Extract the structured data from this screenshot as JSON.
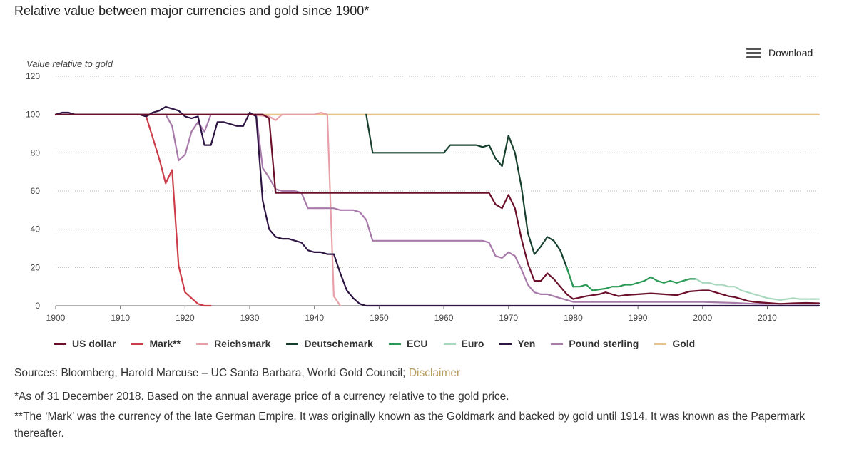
{
  "title": "Relative value between major currencies and gold since 1900*",
  "download_label": "Download",
  "sources": {
    "text": "Sources: Bloomberg, Harold Marcuse – UC Santa Barbara, World Gold Council;",
    "link": "Disclaimer"
  },
  "notes": {
    "n1": "*As of 31 December 2018. Based on the annual average price of a currency relative to the gold price.",
    "n2": "**The ‘Mark’ was the currency of the late German Empire. It was originally known as the Goldmark and backed by gold until 1914. It was known as the Papermark thereafter."
  },
  "colors": {
    "grid": "#bbbbbb",
    "axis": "#666666"
  },
  "chart_data": {
    "type": "line",
    "ylabel": "Value relative to gold",
    "xlim": [
      1900,
      2018
    ],
    "ylim": [
      0,
      120
    ],
    "x_ticks": [
      1900,
      1910,
      1920,
      1930,
      1940,
      1950,
      1960,
      1970,
      1980,
      1990,
      2000,
      2010
    ],
    "y_ticks": [
      0,
      20,
      40,
      60,
      80,
      100,
      120
    ],
    "grid": true,
    "legend_position": "bottom",
    "series": [
      {
        "name": "Gold",
        "color": "#e8c48c",
        "points": [
          [
            1900,
            100
          ],
          [
            2018,
            100
          ]
        ]
      },
      {
        "name": "Reichsmark",
        "color": "#e8a0a8",
        "points": [
          [
            1924,
            100
          ],
          [
            1930,
            100
          ],
          [
            1933,
            99
          ],
          [
            1934,
            97
          ],
          [
            1935,
            100
          ],
          [
            1938,
            100
          ],
          [
            1939,
            100
          ],
          [
            1940,
            100
          ],
          [
            1941,
            101
          ],
          [
            1942,
            100
          ],
          [
            1943,
            5
          ],
          [
            1944,
            0
          ]
        ]
      },
      {
        "name": "Mark**",
        "color": "#cc3d4a",
        "points": [
          [
            1900,
            100
          ],
          [
            1913,
            100
          ],
          [
            1914,
            99
          ],
          [
            1915,
            88
          ],
          [
            1916,
            77
          ],
          [
            1917,
            64
          ],
          [
            1918,
            71
          ],
          [
            1919,
            21
          ],
          [
            1920,
            7
          ],
          [
            1921,
            4
          ],
          [
            1922,
            1
          ],
          [
            1923,
            0
          ],
          [
            1924,
            0
          ]
        ]
      },
      {
        "name": "Pound sterling",
        "color": "#a87aaa",
        "points": [
          [
            1900,
            100
          ],
          [
            1917,
            100
          ],
          [
            1918,
            94
          ],
          [
            1919,
            76
          ],
          [
            1920,
            79
          ],
          [
            1921,
            91
          ],
          [
            1922,
            96
          ],
          [
            1923,
            91
          ],
          [
            1924,
            100
          ],
          [
            1930,
            100
          ],
          [
            1931,
            100
          ],
          [
            1932,
            72
          ],
          [
            1933,
            67
          ],
          [
            1934,
            61
          ],
          [
            1935,
            60
          ],
          [
            1936,
            60
          ],
          [
            1937,
            60
          ],
          [
            1938,
            59
          ],
          [
            1939,
            51
          ],
          [
            1940,
            51
          ],
          [
            1941,
            51
          ],
          [
            1942,
            51
          ],
          [
            1943,
            51
          ],
          [
            1944,
            50
          ],
          [
            1945,
            50
          ],
          [
            1946,
            50
          ],
          [
            1947,
            49
          ],
          [
            1948,
            45
          ],
          [
            1949,
            34
          ],
          [
            1950,
            34
          ],
          [
            1966,
            34
          ],
          [
            1967,
            33
          ],
          [
            1968,
            26
          ],
          [
            1969,
            25
          ],
          [
            1970,
            28
          ],
          [
            1971,
            26
          ],
          [
            1972,
            19
          ],
          [
            1973,
            11
          ],
          [
            1974,
            7
          ],
          [
            1975,
            6
          ],
          [
            1976,
            6
          ],
          [
            1978,
            4
          ],
          [
            1979,
            3
          ],
          [
            1980,
            2
          ],
          [
            1990,
            2
          ],
          [
            2000,
            2
          ],
          [
            2005,
            1.5
          ],
          [
            2008,
            1
          ],
          [
            2018,
            1
          ]
        ]
      },
      {
        "name": "Yen",
        "color": "#2e1544",
        "points": [
          [
            1900,
            100
          ],
          [
            1901,
            101
          ],
          [
            1902,
            101
          ],
          [
            1903,
            100
          ],
          [
            1910,
            100
          ],
          [
            1913,
            100
          ],
          [
            1914,
            99
          ],
          [
            1915,
            101
          ],
          [
            1916,
            102
          ],
          [
            1917,
            104
          ],
          [
            1918,
            103
          ],
          [
            1919,
            102
          ],
          [
            1920,
            99
          ],
          [
            1921,
            98
          ],
          [
            1922,
            99
          ],
          [
            1923,
            84
          ],
          [
            1924,
            84
          ],
          [
            1925,
            96
          ],
          [
            1926,
            96
          ],
          [
            1927,
            95
          ],
          [
            1928,
            94
          ],
          [
            1929,
            94
          ],
          [
            1930,
            101
          ],
          [
            1931,
            99
          ],
          [
            1932,
            55
          ],
          [
            1933,
            40
          ],
          [
            1934,
            36
          ],
          [
            1935,
            35
          ],
          [
            1936,
            35
          ],
          [
            1937,
            34
          ],
          [
            1938,
            33
          ],
          [
            1939,
            29
          ],
          [
            1940,
            28
          ],
          [
            1941,
            28
          ],
          [
            1942,
            27
          ],
          [
            1943,
            27
          ],
          [
            1944,
            17
          ],
          [
            1945,
            8
          ],
          [
            1946,
            4
          ],
          [
            1947,
            1
          ],
          [
            1948,
            0
          ],
          [
            2018,
            0
          ]
        ]
      },
      {
        "name": "US dollar",
        "color": "#6b0f2a",
        "points": [
          [
            1900,
            100
          ],
          [
            1932,
            100
          ],
          [
            1933,
            98
          ],
          [
            1934,
            59
          ],
          [
            1967,
            59
          ],
          [
            1968,
            53
          ],
          [
            1969,
            51
          ],
          [
            1970,
            58
          ],
          [
            1971,
            51
          ],
          [
            1972,
            35
          ],
          [
            1973,
            22
          ],
          [
            1974,
            13
          ],
          [
            1975,
            13
          ],
          [
            1976,
            17
          ],
          [
            1977,
            14
          ],
          [
            1978,
            10
          ],
          [
            1979,
            6
          ],
          [
            1980,
            3.5
          ],
          [
            1982,
            5
          ],
          [
            1983,
            5.5
          ],
          [
            1984,
            6
          ],
          [
            1985,
            7
          ],
          [
            1987,
            5
          ],
          [
            1988,
            5.5
          ],
          [
            1990,
            6
          ],
          [
            1992,
            6.5
          ],
          [
            1994,
            6
          ],
          [
            1996,
            5.5
          ],
          [
            1998,
            7.5
          ],
          [
            2000,
            8
          ],
          [
            2001,
            8
          ],
          [
            2002,
            7
          ],
          [
            2003,
            6
          ],
          [
            2004,
            5
          ],
          [
            2005,
            4.5
          ],
          [
            2006,
            3.5
          ],
          [
            2007,
            2.5
          ],
          [
            2008,
            2
          ],
          [
            2010,
            1.5
          ],
          [
            2012,
            1
          ],
          [
            2014,
            1.3
          ],
          [
            2016,
            1.5
          ],
          [
            2018,
            1.3
          ]
        ]
      },
      {
        "name": "Deutschemark",
        "color": "#17402e",
        "points": [
          [
            1948,
            100
          ],
          [
            1949,
            80
          ],
          [
            1958,
            80
          ],
          [
            1960,
            80
          ],
          [
            1961,
            84
          ],
          [
            1962,
            84
          ],
          [
            1963,
            84
          ],
          [
            1964,
            84
          ],
          [
            1965,
            84
          ],
          [
            1966,
            83
          ],
          [
            1967,
            84
          ],
          [
            1968,
            77
          ],
          [
            1969,
            73
          ],
          [
            1970,
            89
          ],
          [
            1971,
            80
          ],
          [
            1972,
            62
          ],
          [
            1973,
            38
          ],
          [
            1974,
            27
          ],
          [
            1975,
            31
          ],
          [
            1976,
            36
          ],
          [
            1977,
            34
          ],
          [
            1978,
            29
          ],
          [
            1979,
            20
          ],
          [
            1980,
            10
          ]
        ]
      },
      {
        "name": "ECU",
        "color": "#2a9a55",
        "points": [
          [
            1979,
            20
          ],
          [
            1980,
            10
          ],
          [
            1981,
            10
          ],
          [
            1982,
            11
          ],
          [
            1983,
            8
          ],
          [
            1985,
            9
          ],
          [
            1986,
            10
          ],
          [
            1987,
            10
          ],
          [
            1988,
            11
          ],
          [
            1989,
            11
          ],
          [
            1990,
            12
          ],
          [
            1991,
            13
          ],
          [
            1992,
            15
          ],
          [
            1993,
            13
          ],
          [
            1994,
            12
          ],
          [
            1995,
            13
          ],
          [
            1996,
            12
          ],
          [
            1997,
            13
          ],
          [
            1998,
            14
          ],
          [
            1999,
            14
          ]
        ]
      },
      {
        "name": "Euro",
        "color": "#a8d8bd",
        "points": [
          [
            1999,
            14
          ],
          [
            2000,
            12
          ],
          [
            2001,
            12
          ],
          [
            2002,
            11
          ],
          [
            2003,
            11
          ],
          [
            2004,
            10
          ],
          [
            2005,
            10
          ],
          [
            2006,
            8
          ],
          [
            2007,
            7
          ],
          [
            2008,
            6
          ],
          [
            2009,
            5
          ],
          [
            2010,
            4
          ],
          [
            2011,
            3.5
          ],
          [
            2012,
            3
          ],
          [
            2013,
            3.5
          ],
          [
            2014,
            4
          ],
          [
            2015,
            3.5
          ],
          [
            2016,
            3.5
          ],
          [
            2017,
            3.5
          ],
          [
            2018,
            3.5
          ]
        ]
      }
    ],
    "legend": [
      {
        "name": "US dollar",
        "color": "#6b0f2a"
      },
      {
        "name": "Mark**",
        "color": "#cc3d4a"
      },
      {
        "name": "Reichsmark",
        "color": "#e8a0a8"
      },
      {
        "name": "Deutschemark",
        "color": "#17402e"
      },
      {
        "name": "ECU",
        "color": "#2a9a55"
      },
      {
        "name": "Euro",
        "color": "#a8d8bd"
      },
      {
        "name": "Yen",
        "color": "#2e1544"
      },
      {
        "name": "Pound sterling",
        "color": "#a87aaa"
      },
      {
        "name": "Gold",
        "color": "#e8c48c"
      }
    ]
  }
}
